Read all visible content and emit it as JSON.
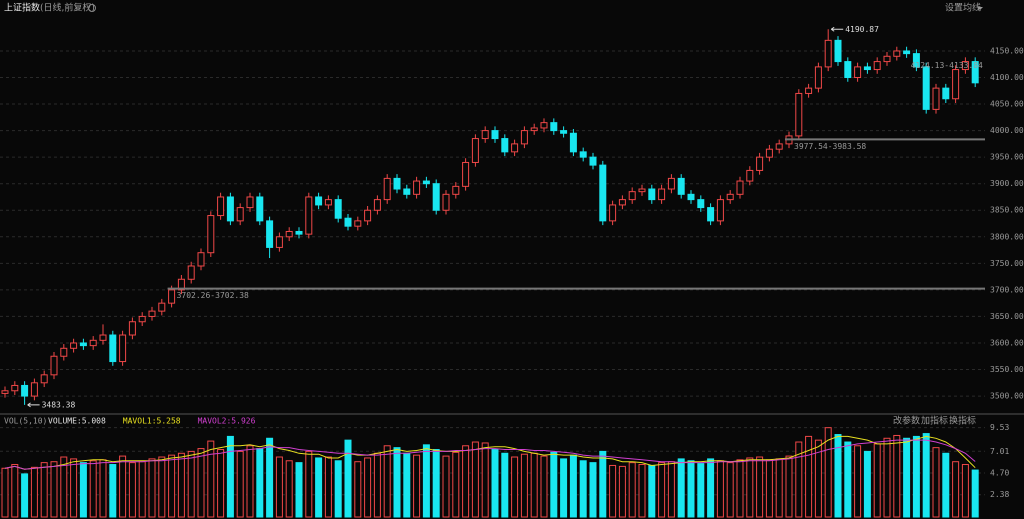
{
  "header": {
    "title": "上证指数",
    "subtitle": "(日线,前复权)",
    "menu": "设置均线"
  },
  "toolbar": [
    "改参数",
    "加指标",
    "换指标"
  ],
  "chart_data": [
    {
      "type": "candlestick",
      "up_color": "#f04848",
      "down_color": "#19e6f0",
      "ylim": [
        3470,
        4246
      ],
      "yticks": [
        {
          "value": 4150,
          "label": "4150.00"
        },
        {
          "value": 4100,
          "label": "4100.00"
        },
        {
          "value": 4050,
          "label": "4050.00"
        },
        {
          "value": 4000,
          "label": "4000.00"
        },
        {
          "value": 3950,
          "label": "3950.00"
        },
        {
          "value": 3900,
          "label": "3900.00"
        },
        {
          "value": 3850,
          "label": "3850.00"
        },
        {
          "value": 3800,
          "label": "3800.00"
        },
        {
          "value": 3750,
          "label": "3750.00"
        },
        {
          "value": 3700,
          "label": "3700.00"
        },
        {
          "value": 3650,
          "label": "3650.00"
        },
        {
          "value": 3600,
          "label": "3600.00"
        },
        {
          "value": 3550,
          "label": "3550.00"
        },
        {
          "value": 3500,
          "label": "3500.00"
        }
      ],
      "grid": true,
      "open": [
        3505,
        3510,
        3520,
        3500,
        3525,
        3540,
        3575,
        3590,
        3600,
        3595,
        3605,
        3615,
        3565,
        3615,
        3640,
        3650,
        3660,
        3675,
        3700,
        3720,
        3745,
        3770,
        3840,
        3875,
        3830,
        3855,
        3875,
        3830,
        3780,
        3800,
        3810,
        3805,
        3875,
        3860,
        3870,
        3835,
        3820,
        3830,
        3850,
        3870,
        3910,
        3890,
        3880,
        3905,
        3900,
        3850,
        3880,
        3895,
        3940,
        3985,
        4000,
        3985,
        3960,
        3975,
        4000,
        4005,
        4015,
        4000,
        3995,
        3960,
        3950,
        3935,
        3830,
        3860,
        3870,
        3885,
        3890,
        3870,
        3890,
        3910,
        3880,
        3870,
        3855,
        3830,
        3870,
        3880,
        3905,
        3925,
        3950,
        3965,
        3975,
        3990,
        4070,
        4080,
        4120,
        4170,
        4130,
        4100,
        4120,
        4115,
        4130,
        4140,
        4150,
        4145,
        4120,
        4040,
        4080,
        4060,
        4115,
        4130
      ],
      "high": [
        3518,
        3528,
        3528,
        3533,
        3548,
        3583,
        3598,
        3608,
        3608,
        3613,
        3635,
        3623,
        3623,
        3648,
        3658,
        3668,
        3683,
        3708,
        3728,
        3753,
        3778,
        3848,
        3883,
        3883,
        3863,
        3883,
        3883,
        3838,
        3808,
        3818,
        3818,
        3883,
        3883,
        3878,
        3878,
        3843,
        3838,
        3858,
        3878,
        3918,
        3918,
        3898,
        3913,
        3913,
        3908,
        3888,
        3903,
        3948,
        3993,
        4008,
        4008,
        3993,
        3983,
        4008,
        4013,
        4023,
        4023,
        4008,
        4003,
        3968,
        3958,
        3943,
        3868,
        3878,
        3893,
        3898,
        3898,
        3898,
        3918,
        3918,
        3888,
        3878,
        3863,
        3878,
        3888,
        3913,
        3933,
        3958,
        3973,
        3983,
        3998,
        4078,
        4088,
        4128,
        4190.87,
        4178,
        4138,
        4128,
        4128,
        4138,
        4148,
        4158,
        4158,
        4153,
        4128,
        4088,
        4088,
        4123,
        4138,
        4138
      ],
      "low": [
        3497,
        3502,
        3483.38,
        3492,
        3517,
        3532,
        3567,
        3582,
        3587,
        3587,
        3597,
        3557,
        3557,
        3607,
        3632,
        3642,
        3652,
        3667,
        3692,
        3712,
        3737,
        3762,
        3832,
        3822,
        3822,
        3847,
        3822,
        3760,
        3772,
        3792,
        3797,
        3797,
        3852,
        3852,
        3827,
        3812,
        3812,
        3822,
        3842,
        3862,
        3882,
        3872,
        3872,
        3892,
        3842,
        3842,
        3872,
        3887,
        3932,
        3977,
        3977,
        3952,
        3952,
        3967,
        3992,
        3997,
        3992,
        3987,
        3952,
        3942,
        3927,
        3822,
        3822,
        3852,
        3862,
        3877,
        3862,
        3862,
        3882,
        3872,
        3862,
        3847,
        3822,
        3822,
        3862,
        3872,
        3897,
        3917,
        3942,
        3957,
        3967,
        3982,
        4062,
        4072,
        4112,
        4122,
        4092,
        4092,
        4107,
        4107,
        4122,
        4132,
        4137,
        4112,
        4032,
        4032,
        4052,
        4052,
        4107,
        4082
      ],
      "close": [
        3510,
        3520,
        3500,
        3525,
        3540,
        3575,
        3590,
        3600,
        3595,
        3605,
        3615,
        3565,
        3615,
        3640,
        3650,
        3660,
        3675,
        3700,
        3720,
        3745,
        3770,
        3840,
        3875,
        3830,
        3855,
        3875,
        3830,
        3780,
        3800,
        3810,
        3805,
        3875,
        3860,
        3870,
        3835,
        3820,
        3830,
        3850,
        3870,
        3910,
        3890,
        3880,
        3905,
        3900,
        3850,
        3880,
        3895,
        3940,
        3985,
        4000,
        3985,
        3960,
        3975,
        4000,
        4005,
        4015,
        4000,
        3995,
        3960,
        3950,
        3935,
        3830,
        3860,
        3870,
        3885,
        3890,
        3870,
        3890,
        3910,
        3880,
        3870,
        3855,
        3830,
        3870,
        3880,
        3905,
        3925,
        3950,
        3965,
        3975,
        3990,
        4070,
        4080,
        4120,
        4170,
        4130,
        4100,
        4120,
        4115,
        4130,
        4140,
        4150,
        4145,
        4120,
        4040,
        4080,
        4060,
        4115,
        4130,
        4090
      ],
      "annotations": [
        {
          "text": "4190.87",
          "value": 4190.87,
          "index": 84,
          "arrow": true,
          "line": false
        },
        {
          "text": "3483.38",
          "value": 3483.38,
          "index": 2,
          "arrow": true,
          "line": false
        },
        {
          "text": "3702.26-3702.38",
          "value": 3702.26,
          "index": 17,
          "arrow": false,
          "line": true
        },
        {
          "text": "3977.54-3983.58",
          "value": 3983.58,
          "index": 80,
          "arrow": false,
          "line": true
        },
        {
          "text": "4124.13-4133.84",
          "value": 4133.84,
          "index": 92,
          "arrow": false,
          "line": false
        }
      ]
    },
    {
      "type": "volume",
      "title": "VOL(5,10)",
      "ylim": [
        0,
        10.35
      ],
      "yticks": [
        9.53,
        7.01,
        {
          "value": 4.7,
          "label": "4.70"
        },
        2.38
      ],
      "series": [
        {
          "name": "VOLUME:5.008",
          "color": "#e0e0e0",
          "values": [
            5.2,
            5.6,
            4.6,
            5.3,
            5.8,
            5.9,
            6.4,
            6.2,
            5.8,
            6.0,
            6.1,
            5.6,
            6.5,
            5.8,
            5.9,
            6.2,
            6.4,
            6.6,
            6.8,
            7.0,
            7.3,
            8.1,
            7.2,
            8.6,
            7.0,
            7.6,
            7.3,
            8.4,
            6.4,
            6.0,
            5.8,
            7.0,
            6.3,
            6.4,
            6.0,
            8.2,
            5.9,
            6.3,
            6.8,
            7.6,
            7.4,
            6.8,
            6.6,
            7.7,
            7.2,
            6.5,
            6.9,
            7.6,
            8.0,
            7.9,
            7.2,
            6.8,
            6.4,
            6.7,
            6.8,
            6.5,
            6.9,
            6.2,
            6.6,
            6.0,
            5.8,
            7.0,
            5.5,
            5.4,
            5.8,
            5.6,
            5.5,
            5.8,
            5.9,
            6.2,
            6.0,
            5.7,
            6.2,
            6.0,
            5.8,
            6.1,
            6.3,
            6.4,
            6.1,
            6.2,
            6.5,
            8.0,
            8.6,
            8.2,
            9.53,
            8.8,
            8.0,
            7.6,
            7.0,
            7.8,
            8.4,
            8.7,
            8.4,
            8.6,
            8.9,
            7.4,
            6.8,
            5.9,
            5.6,
            5.008
          ]
        },
        {
          "name": "MAVOL1:5.258",
          "color": "#e8e020",
          "values": [
            5.2,
            5.4,
            5.1,
            5.2,
            5.3,
            5.4,
            5.6,
            5.9,
            6.0,
            6.1,
            6.1,
            5.9,
            6.0,
            6.0,
            6.0,
            6.0,
            6.1,
            6.3,
            6.4,
            6.6,
            6.8,
            7.2,
            7.4,
            7.6,
            7.6,
            7.7,
            7.5,
            7.7,
            7.3,
            7.1,
            6.8,
            6.7,
            6.7,
            6.3,
            6.3,
            6.8,
            6.6,
            6.6,
            6.8,
            7.0,
            7.2,
            7.0,
            7.1,
            7.3,
            7.1,
            7.0,
            7.0,
            7.1,
            7.2,
            7.4,
            7.5,
            7.5,
            7.3,
            7.0,
            6.8,
            6.6,
            6.7,
            6.6,
            6.6,
            6.4,
            6.3,
            6.3,
            6.2,
            5.9,
            5.9,
            5.8,
            5.5,
            5.6,
            5.7,
            5.8,
            5.9,
            5.9,
            6.0,
            6.0,
            5.9,
            6.0,
            6.1,
            6.1,
            6.1,
            6.2,
            6.3,
            6.7,
            7.1,
            7.5,
            8.2,
            8.6,
            8.6,
            8.4,
            8.2,
            7.8,
            7.8,
            7.9,
            8.0,
            8.3,
            8.6,
            8.4,
            8.0,
            7.3,
            6.3,
            5.258
          ]
        },
        {
          "name": "MAVOL2:5.926",
          "color": "#d040d0",
          "values": [
            5.2,
            5.4,
            5.1,
            5.2,
            5.3,
            5.4,
            5.5,
            5.6,
            5.7,
            5.7,
            5.8,
            5.8,
            5.9,
            5.9,
            5.9,
            6.0,
            6.0,
            6.1,
            6.2,
            6.3,
            6.5,
            6.7,
            6.8,
            7.0,
            7.1,
            7.2,
            7.3,
            7.5,
            7.4,
            7.4,
            7.2,
            7.1,
            7.0,
            6.9,
            6.8,
            6.8,
            6.7,
            6.6,
            6.6,
            6.7,
            6.8,
            6.8,
            6.9,
            7.0,
            7.0,
            7.0,
            7.1,
            7.1,
            7.2,
            7.3,
            7.3,
            7.2,
            7.2,
            7.2,
            7.1,
            7.1,
            7.0,
            6.9,
            6.8,
            6.6,
            6.5,
            6.5,
            6.4,
            6.3,
            6.2,
            6.1,
            6.0,
            5.9,
            5.9,
            5.8,
            5.8,
            5.8,
            5.8,
            5.9,
            5.9,
            5.9,
            6.0,
            6.0,
            6.0,
            6.1,
            6.2,
            6.4,
            6.6,
            6.9,
            7.2,
            7.4,
            7.6,
            7.8,
            7.9,
            8.0,
            8.1,
            8.2,
            8.2,
            8.2,
            8.2,
            8.0,
            7.7,
            7.3,
            6.8,
            5.926
          ]
        }
      ]
    }
  ]
}
